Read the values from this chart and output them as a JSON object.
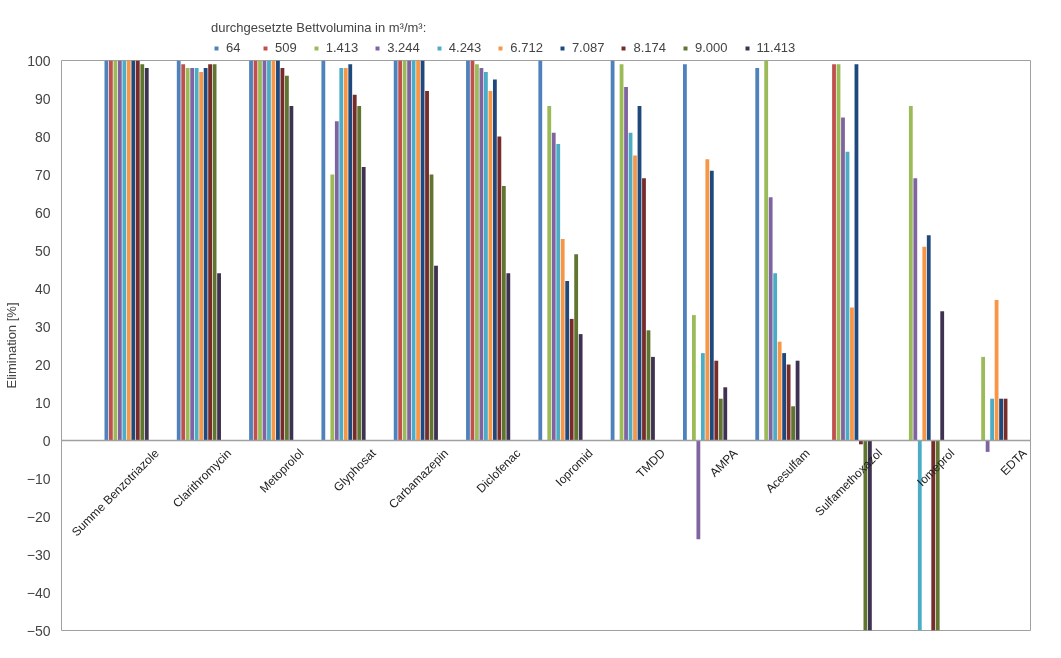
{
  "chart_data": {
    "type": "bar",
    "ylabel": "Elimination [%]",
    "legend_title": "durchgesetzte Bettvolumina in m³/m³:",
    "legend": "top",
    "categories": [
      "Summe Benzotriazole",
      "Clarithromycin",
      "Metoprolol",
      "Glyphosat",
      "Carbamazepin",
      "Diclofenac",
      "Iopromid",
      "TMDD",
      "AMPA",
      "Acesulfam",
      "Sulfamethoxazol",
      "Iomeprol",
      "EDTA"
    ],
    "series": [
      {
        "name": "64",
        "color": "#4f81bd",
        "values": [
          100,
          100,
          100,
          100,
          100,
          100,
          100,
          100,
          99,
          98,
          null,
          null,
          null
        ]
      },
      {
        "name": "509",
        "color": "#c0504d",
        "values": [
          100,
          99,
          100,
          null,
          100,
          100,
          null,
          null,
          null,
          null,
          99,
          null,
          null
        ]
      },
      {
        "name": "1.413",
        "color": "#9bbb59",
        "values": [
          100,
          98,
          100,
          70,
          100,
          99,
          88,
          99,
          33,
          100,
          99,
          88,
          22
        ]
      },
      {
        "name": "3.244",
        "color": "#8064a2",
        "values": [
          100,
          98,
          100,
          84,
          100,
          98,
          81,
          93,
          -26,
          64,
          85,
          69,
          -3
        ]
      },
      {
        "name": "4.243",
        "color": "#4bacc6",
        "values": [
          100,
          98,
          100,
          98,
          100,
          97,
          78,
          81,
          23,
          44,
          76,
          -50,
          11
        ]
      },
      {
        "name": "6.712",
        "color": "#f79646",
        "values": [
          100,
          97,
          100,
          98,
          100,
          92,
          53,
          75,
          74,
          26,
          35,
          51,
          37
        ]
      },
      {
        "name": "7.087",
        "color": "#1f497d",
        "values": [
          100,
          98,
          100,
          99,
          100,
          95,
          42,
          88,
          71,
          23,
          99,
          54,
          11
        ]
      },
      {
        "name": "8.174",
        "color": "#772c2a",
        "values": [
          100,
          99,
          98,
          91,
          92,
          80,
          32,
          69,
          21,
          20,
          -1,
          -50,
          11
        ]
      },
      {
        "name": "9.000",
        "color": "#5f7530",
        "values": [
          99,
          99,
          96,
          88,
          70,
          67,
          49,
          29,
          11,
          9,
          -50,
          -50,
          null
        ]
      },
      {
        "name": "11.413",
        "color": "#3f3151",
        "values": [
          98,
          44,
          88,
          72,
          46,
          44,
          28,
          22,
          14,
          21,
          -50,
          34,
          null
        ]
      }
    ],
    "ylim": [
      -50,
      100
    ],
    "yticks": [
      -50,
      -40,
      -30,
      -20,
      -10,
      0,
      10,
      20,
      30,
      40,
      50,
      60,
      70,
      80,
      90,
      100
    ],
    "grid": false
  }
}
